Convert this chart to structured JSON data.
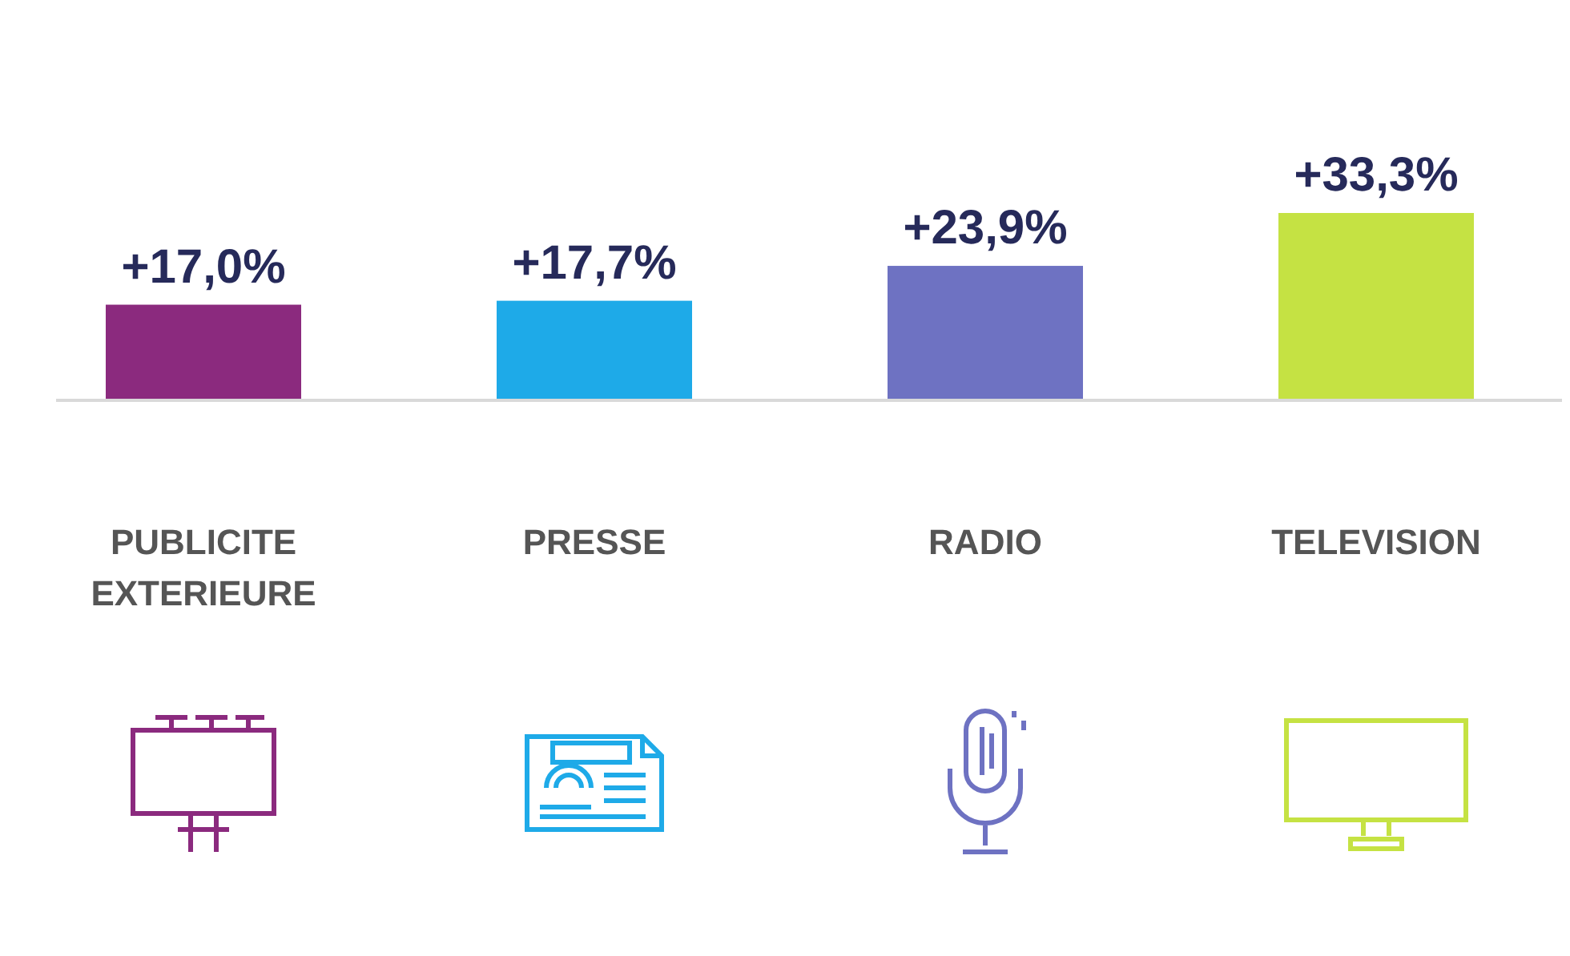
{
  "chart_data": {
    "type": "bar",
    "categories": [
      "PUBLICITE EXTERIEURE",
      "PRESSE",
      "RADIO",
      "TELEVISION"
    ],
    "values": [
      17.0,
      17.7,
      23.9,
      33.3
    ],
    "colors": [
      "#8b2a7e",
      "#1eaae8",
      "#6e72c2",
      "#c5e243"
    ],
    "value_labels": [
      "+17,0%",
      "+17,7%",
      "+23,9%",
      "+33,3%"
    ]
  }
}
